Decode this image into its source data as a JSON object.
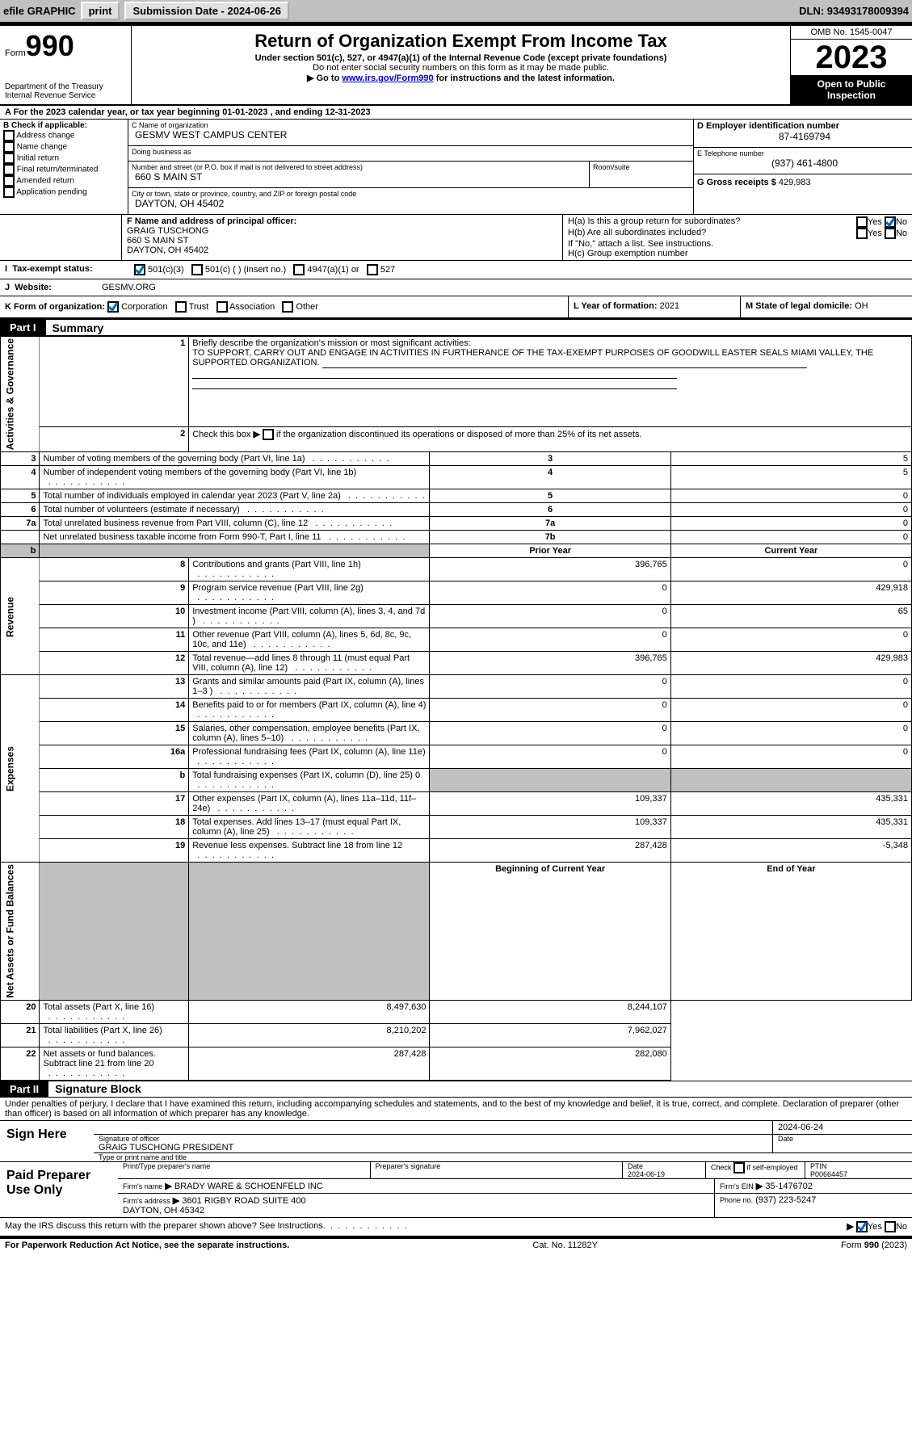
{
  "topbar": {
    "efile": "efile GRAPHIC",
    "print": "print",
    "sub_label": "Submission Date - 2024-06-26",
    "dln": "DLN: 93493178009394"
  },
  "header": {
    "form_word": "Form",
    "form_num": "990",
    "title": "Return of Organization Exempt From Income Tax",
    "sub1": "Under section 501(c), 527, or 4947(a)(1) of the Internal Revenue Code (except private foundations)",
    "sub2": "Do not enter social security numbers on this form as it may be made public.",
    "sub3_pre": "Go to ",
    "sub3_link": "www.irs.gov/Form990",
    "sub3_post": " for instructions and the latest information.",
    "dept": "Department of the Treasury\nInternal Revenue Service",
    "omb": "OMB No. 1545-0047",
    "year": "2023",
    "inspect": "Open to Public Inspection"
  },
  "calendar": "A For the 2023 calendar year, or tax year beginning 01-01-2023   , and ending 12-31-2023",
  "secB": {
    "label": "B Check if applicable:",
    "opts": [
      "Address change",
      "Name change",
      "Initial return",
      "Final return/terminated",
      "Amended return",
      "Application pending"
    ]
  },
  "secC": {
    "name_label": "C Name of organization",
    "name": "GESMV WEST CAMPUS CENTER",
    "dba_label": "Doing business as",
    "dba": "",
    "addr_label": "Number and street (or P.O. box if mail is not delivered to street address)",
    "addr": "660 S MAIN ST",
    "room_label": "Room/suite",
    "room": "",
    "city_label": "City or town, state or province, country, and ZIP or foreign postal code",
    "city": "DAYTON, OH  45402"
  },
  "secD": {
    "label": "D Employer identification number",
    "val": "87-4169794"
  },
  "secE": {
    "label": "E Telephone number",
    "val": "(937) 461-4800"
  },
  "secG": {
    "label": "G Gross receipts $",
    "val": "429,983"
  },
  "secF": {
    "label": "F  Name and address of principal officer:",
    "val": "GRAIG TUSCHONG\n660 S MAIN ST\nDAYTON, OH  45402"
  },
  "secH": {
    "ha": "H(a)  Is this a group return for subordinates?",
    "hb": "H(b)  Are all subordinates included?",
    "hb_note": "If \"No,\" attach a list. See instructions.",
    "hc": "H(c)  Group exemption number",
    "yes": "Yes",
    "no": "No"
  },
  "secI": {
    "label": "Tax-exempt status:",
    "opts": [
      "501(c)(3)",
      "501(c) (  ) (insert no.)",
      "4947(a)(1) or",
      "527"
    ]
  },
  "secJ": {
    "label": "Website:",
    "val": "GESMV.ORG"
  },
  "secK": {
    "label": "K Form of organization:",
    "opts": [
      "Corporation",
      "Trust",
      "Association",
      "Other"
    ]
  },
  "secL": {
    "label": "L Year of formation:",
    "val": "2021"
  },
  "secM": {
    "label": "M State of legal domicile:",
    "val": "OH"
  },
  "part1": {
    "title": "Part I",
    "name": "Summary",
    "q1_label": "Briefly describe the organization's mission or most significant activities:",
    "q1_val": "TO SUPPORT, CARRY OUT AND ENGAGE IN ACTIVITIES IN FURTHERANCE OF THE TAX-EXEMPT PURPOSES OF GOODWILL EASTER SEALS MIAMI VALLEY, THE SUPPORTED ORGANIZATION.",
    "q2": "Check this box      if the organization discontinued its operations or disposed of more than 25% of its net assets.",
    "sections": {
      "gov": "Activities & Governance",
      "rev": "Revenue",
      "exp": "Expenses",
      "net": "Net Assets or Fund Balances"
    },
    "gov_lines": [
      {
        "n": "3",
        "t": "Number of voting members of the governing body (Part VI, line 1a)",
        "k": "3",
        "v": "5"
      },
      {
        "n": "4",
        "t": "Number of independent voting members of the governing body (Part VI, line 1b)",
        "k": "4",
        "v": "5"
      },
      {
        "n": "5",
        "t": "Total number of individuals employed in calendar year 2023 (Part V, line 2a)",
        "k": "5",
        "v": "0"
      },
      {
        "n": "6",
        "t": "Total number of volunteers (estimate if necessary)",
        "k": "6",
        "v": "0"
      },
      {
        "n": "7a",
        "t": "Total unrelated business revenue from Part VIII, column (C), line 12",
        "k": "7a",
        "v": "0"
      },
      {
        "n": "",
        "t": "Net unrelated business taxable income from Form 990-T, Part I, line 11",
        "k": "7b",
        "v": "0"
      }
    ],
    "prior": "Prior Year",
    "current": "Current Year",
    "rev_lines": [
      {
        "n": "8",
        "t": "Contributions and grants (Part VIII, line 1h)",
        "p": "396,765",
        "c": "0"
      },
      {
        "n": "9",
        "t": "Program service revenue (Part VIII, line 2g)",
        "p": "0",
        "c": "429,918"
      },
      {
        "n": "10",
        "t": "Investment income (Part VIII, column (A), lines 3, 4, and 7d )",
        "p": "0",
        "c": "65"
      },
      {
        "n": "11",
        "t": "Other revenue (Part VIII, column (A), lines 5, 6d, 8c, 9c, 10c, and 11e)",
        "p": "0",
        "c": "0"
      },
      {
        "n": "12",
        "t": "Total revenue—add lines 8 through 11 (must equal Part VIII, column (A), line 12)",
        "p": "396,765",
        "c": "429,983"
      }
    ],
    "exp_lines": [
      {
        "n": "13",
        "t": "Grants and similar amounts paid (Part IX, column (A), lines 1–3 )",
        "p": "0",
        "c": "0"
      },
      {
        "n": "14",
        "t": "Benefits paid to or for members (Part IX, column (A), line 4)",
        "p": "0",
        "c": "0"
      },
      {
        "n": "15",
        "t": "Salaries, other compensation, employee benefits (Part IX, column (A), lines 5–10)",
        "p": "0",
        "c": "0"
      },
      {
        "n": "16a",
        "t": "Professional fundraising fees (Part IX, column (A), line 11e)",
        "p": "0",
        "c": "0"
      },
      {
        "n": "b",
        "t": "Total fundraising expenses (Part IX, column (D), line 25) 0",
        "p": "shade",
        "c": "shade"
      },
      {
        "n": "17",
        "t": "Other expenses (Part IX, column (A), lines 11a–11d, 11f–24e)",
        "p": "109,337",
        "c": "435,331"
      },
      {
        "n": "18",
        "t": "Total expenses. Add lines 13–17 (must equal Part IX, column (A), line 25)",
        "p": "109,337",
        "c": "435,331"
      },
      {
        "n": "19",
        "t": "Revenue less expenses. Subtract line 18 from line 12",
        "p": "287,428",
        "c": "-5,348"
      }
    ],
    "boy": "Beginning of Current Year",
    "eoy": "End of Year",
    "net_lines": [
      {
        "n": "20",
        "t": "Total assets (Part X, line 16)",
        "p": "8,497,630",
        "c": "8,244,107"
      },
      {
        "n": "21",
        "t": "Total liabilities (Part X, line 26)",
        "p": "8,210,202",
        "c": "7,962,027"
      },
      {
        "n": "22",
        "t": "Net assets or fund balances. Subtract line 21 from line 20",
        "p": "287,428",
        "c": "282,080"
      }
    ]
  },
  "part2": {
    "title": "Part II",
    "name": "Signature Block",
    "perjury": "Under penalties of perjury, I declare that I have examined this return, including accompanying schedules and statements, and to the best of my knowledge and belief, it is true, correct, and complete. Declaration of preparer (other than officer) is based on all information of which preparer has any knowledge.",
    "sign_here": "Sign Here",
    "sig_of": "Signature of officer",
    "sig_date_label": "Date",
    "sig_date": "2024-06-24",
    "officer": "GRAIG TUSCHONG PRESIDENT",
    "type_title": "Type or print name and title",
    "paid": "Paid Preparer Use Only",
    "prep_name_label": "Print/Type preparer's name",
    "prep_name": "",
    "prep_sig_label": "Preparer's signature",
    "prep_date_label": "Date",
    "prep_date": "2024-06-19",
    "self_emp": "Check      if self-employed",
    "ptin_label": "PTIN",
    "ptin": "P00664457",
    "firm_name_label": "Firm's name",
    "firm_name": "BRADY WARE & SCHOENFELD INC",
    "firm_ein_label": "Firm's EIN",
    "firm_ein": "35-1476702",
    "firm_addr_label": "Firm's address",
    "firm_addr": "3601 RIGBY ROAD SUITE 400\nDAYTON, OH  45342",
    "firm_phone_label": "Phone no.",
    "firm_phone": "(937) 223-5247",
    "discuss": "May the IRS discuss this return with the preparer shown above? See Instructions."
  },
  "footer": {
    "left": "For Paperwork Reduction Act Notice, see the separate instructions.",
    "mid": "Cat. No. 11282Y",
    "right": "Form 990 (2023)"
  }
}
